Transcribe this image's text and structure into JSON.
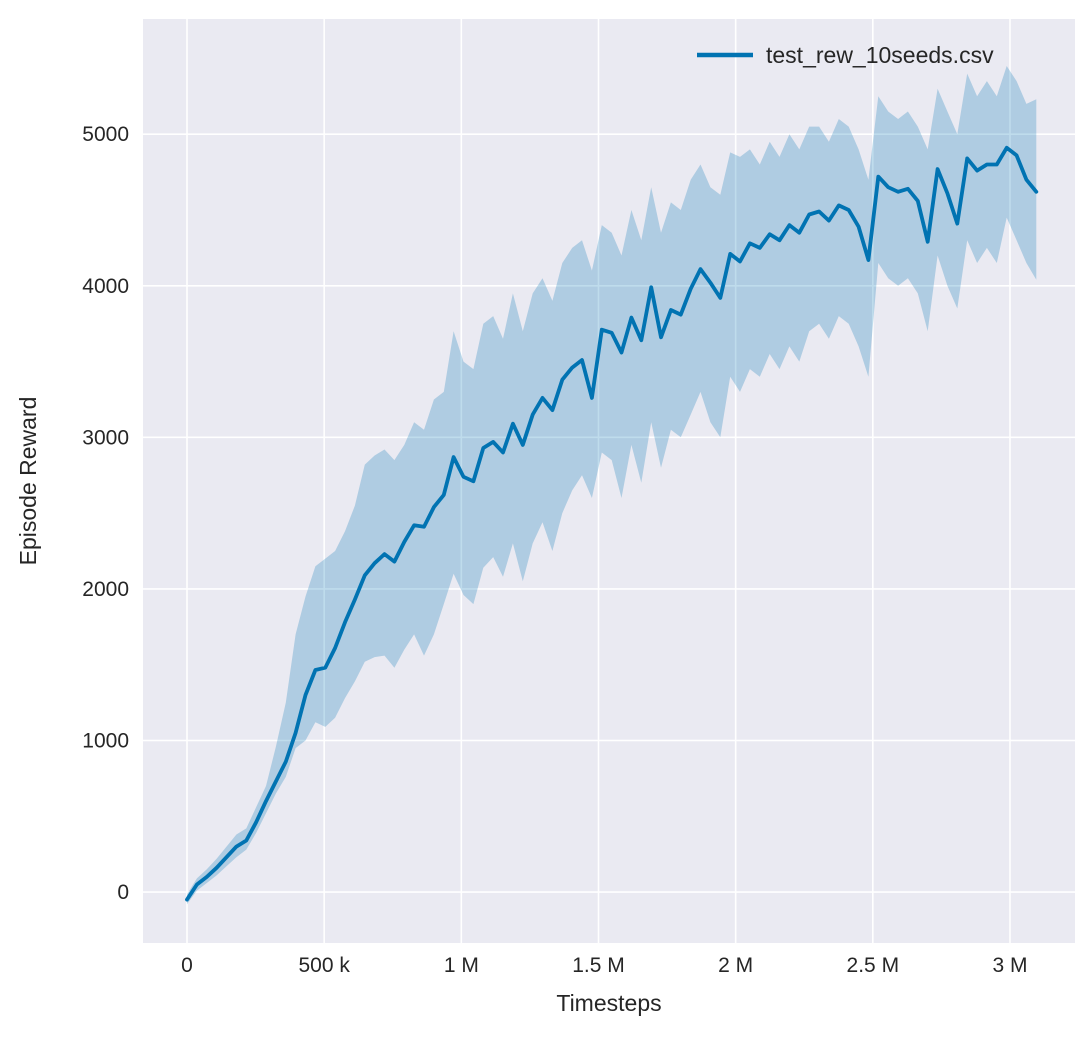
{
  "figure": {
    "background": "#ffffff"
  },
  "chart_data": {
    "type": "line",
    "title": "",
    "xlabel": "Timesteps",
    "ylabel": "Episode Reward",
    "x_range": [
      -160400,
      3237000
    ],
    "y_range": [
      -336,
      5760
    ],
    "grid": true,
    "plot_background": "#eaeaf2",
    "gridline_color": "#ffffff",
    "text_color": "#262626",
    "legend_position": "upper right",
    "x_ticks": [
      {
        "value": 0,
        "label": "0"
      },
      {
        "value": 500000,
        "label": "500 k"
      },
      {
        "value": 1000000,
        "label": "1 M"
      },
      {
        "value": 1500000,
        "label": "1.5 M"
      },
      {
        "value": 2000000,
        "label": "2 M"
      },
      {
        "value": 2500000,
        "label": "2.5 M"
      },
      {
        "value": 3000000,
        "label": "3 M"
      }
    ],
    "y_ticks": [
      {
        "value": 0,
        "label": "0"
      },
      {
        "value": 1000,
        "label": "1000"
      },
      {
        "value": 2000,
        "label": "2000"
      },
      {
        "value": 3000,
        "label": "3000"
      },
      {
        "value": 4000,
        "label": "4000"
      },
      {
        "value": 5000,
        "label": "5000"
      }
    ],
    "series": [
      {
        "name": "test_rew_10seeds.csv",
        "color": "#0173b2",
        "line_width": 3.8,
        "band_opacity": 0.25,
        "x": [
          0,
          36000,
          72000,
          108000,
          144000,
          180000,
          216000,
          252000,
          288000,
          324000,
          360000,
          396000,
          432000,
          468000,
          504000,
          540000,
          576000,
          612000,
          648000,
          684000,
          720000,
          756000,
          792000,
          828000,
          864000,
          900000,
          936000,
          972000,
          1008000,
          1044000,
          1080000,
          1116000,
          1152000,
          1188000,
          1224000,
          1260000,
          1296000,
          1332000,
          1368000,
          1404000,
          1440000,
          1476000,
          1512000,
          1548000,
          1584000,
          1620000,
          1656000,
          1692000,
          1728000,
          1764000,
          1800000,
          1836000,
          1872000,
          1908000,
          1944000,
          1980000,
          2016000,
          2052000,
          2088000,
          2124000,
          2160000,
          2196000,
          2232000,
          2268000,
          2304000,
          2340000,
          2376000,
          2412000,
          2448000,
          2484000,
          2520000,
          2556000,
          2592000,
          2628000,
          2664000,
          2700000,
          2736000,
          2772000,
          2808000,
          2844000,
          2880000,
          2916000,
          2952000,
          2988000,
          3024000,
          3060000,
          3096000
        ],
        "mean": [
          -50,
          50,
          100,
          160,
          230,
          300,
          340,
          460,
          600,
          730,
          860,
          1050,
          1300,
          1465,
          1480,
          1610,
          1780,
          1930,
          2090,
          2170,
          2230,
          2180,
          2310,
          2420,
          2410,
          2540,
          2620,
          2870,
          2740,
          2710,
          2930,
          2970,
          2900,
          3090,
          2950,
          3150,
          3260,
          3180,
          3380,
          3460,
          3510,
          3260,
          3710,
          3690,
          3560,
          3790,
          3640,
          3990,
          3660,
          3840,
          3810,
          3980,
          4110,
          4020,
          3920,
          4210,
          4160,
          4280,
          4250,
          4340,
          4300,
          4400,
          4350,
          4470,
          4490,
          4430,
          4530,
          4500,
          4390,
          4170,
          4720,
          4650,
          4620,
          4640,
          4560,
          4290,
          4770,
          4610,
          4410,
          4840,
          4760,
          4800,
          4800,
          4910,
          4860,
          4700,
          4620
        ],
        "band_lower": [
          -80,
          10,
          60,
          110,
          170,
          230,
          280,
          390,
          520,
          650,
          760,
          950,
          1000,
          1120,
          1090,
          1150,
          1280,
          1390,
          1520,
          1550,
          1560,
          1480,
          1600,
          1700,
          1560,
          1700,
          1900,
          2100,
          1960,
          1900,
          2140,
          2210,
          2080,
          2300,
          2050,
          2300,
          2440,
          2250,
          2500,
          2650,
          2750,
          2600,
          2900,
          2850,
          2600,
          2950,
          2700,
          3100,
          2800,
          3050,
          3000,
          3150,
          3300,
          3100,
          3000,
          3400,
          3300,
          3450,
          3400,
          3550,
          3450,
          3600,
          3500,
          3700,
          3750,
          3650,
          3800,
          3750,
          3600,
          3400,
          4150,
          4050,
          4000,
          4050,
          3950,
          3700,
          4200,
          4000,
          3850,
          4300,
          4150,
          4250,
          4150,
          4450,
          4300,
          4150,
          4040
        ],
        "band_upper": [
          -15,
          90,
          150,
          220,
          300,
          380,
          420,
          560,
          700,
          960,
          1250,
          1700,
          1950,
          2150,
          2200,
          2250,
          2380,
          2550,
          2820,
          2880,
          2920,
          2850,
          2950,
          3100,
          3050,
          3250,
          3300,
          3700,
          3500,
          3450,
          3750,
          3800,
          3650,
          3950,
          3700,
          3950,
          4050,
          3900,
          4150,
          4250,
          4300,
          4100,
          4400,
          4350,
          4200,
          4500,
          4300,
          4650,
          4350,
          4550,
          4500,
          4700,
          4800,
          4650,
          4600,
          4880,
          4850,
          4900,
          4800,
          4950,
          4850,
          5000,
          4900,
          5050,
          5050,
          4950,
          5100,
          5050,
          4900,
          4700,
          5250,
          5150,
          5100,
          5150,
          5050,
          4900,
          5300,
          5150,
          5000,
          5400,
          5250,
          5350,
          5250,
          5450,
          5350,
          5200,
          5230
        ]
      }
    ]
  }
}
